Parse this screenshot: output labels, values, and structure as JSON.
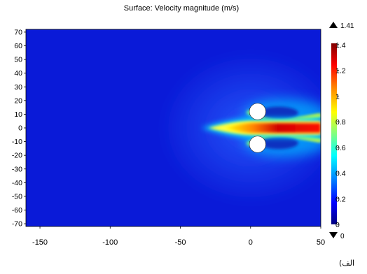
{
  "chart_data": {
    "type": "heatmap",
    "title": "Surface: Velocity magnitude (m/s)",
    "xlabel": "",
    "ylabel": "",
    "xlim": [
      -160,
      50
    ],
    "ylim": [
      -72,
      72
    ],
    "x_ticks": [
      "-150",
      "-100",
      "-50",
      "0",
      "50"
    ],
    "x_tick_values": [
      -150,
      -100,
      -50,
      0,
      50
    ],
    "y_ticks": [
      "70",
      "60",
      "50",
      "40",
      "30",
      "20",
      "10",
      "0",
      "-10",
      "-20",
      "-30",
      "-40",
      "-50",
      "-60",
      "-70"
    ],
    "y_tick_values": [
      70,
      60,
      50,
      40,
      30,
      20,
      10,
      0,
      -10,
      -20,
      -30,
      -40,
      -50,
      -60,
      -70
    ],
    "colorbar": {
      "max_label": "1.41",
      "min_label": "0",
      "ticks": [
        "1.4",
        "1.2",
        "1",
        "0.8",
        "0.6",
        "0.4",
        "0.2",
        "0"
      ],
      "tick_values": [
        1.4,
        1.2,
        1.0,
        0.8,
        0.6,
        0.4,
        0.2,
        0
      ],
      "range": [
        0,
        1.41
      ],
      "colormap": [
        "#000080",
        "#0000ff",
        "#00a0ff",
        "#00ffff",
        "#80ff80",
        "#ffff00",
        "#ff8000",
        "#ff0000",
        "#800000"
      ]
    },
    "field": {
      "background_value": 0.2,
      "obstacles": [
        {
          "shape": "circle",
          "center": [
            5,
            12
          ],
          "radius": 6
        },
        {
          "shape": "circle",
          "center": [
            5,
            -12
          ],
          "radius": 6
        }
      ],
      "jet": {
        "centerline_y": 0,
        "start_x": -35,
        "peak_value": 1.41,
        "peak_x": 15
      }
    }
  },
  "caption": "الف)"
}
